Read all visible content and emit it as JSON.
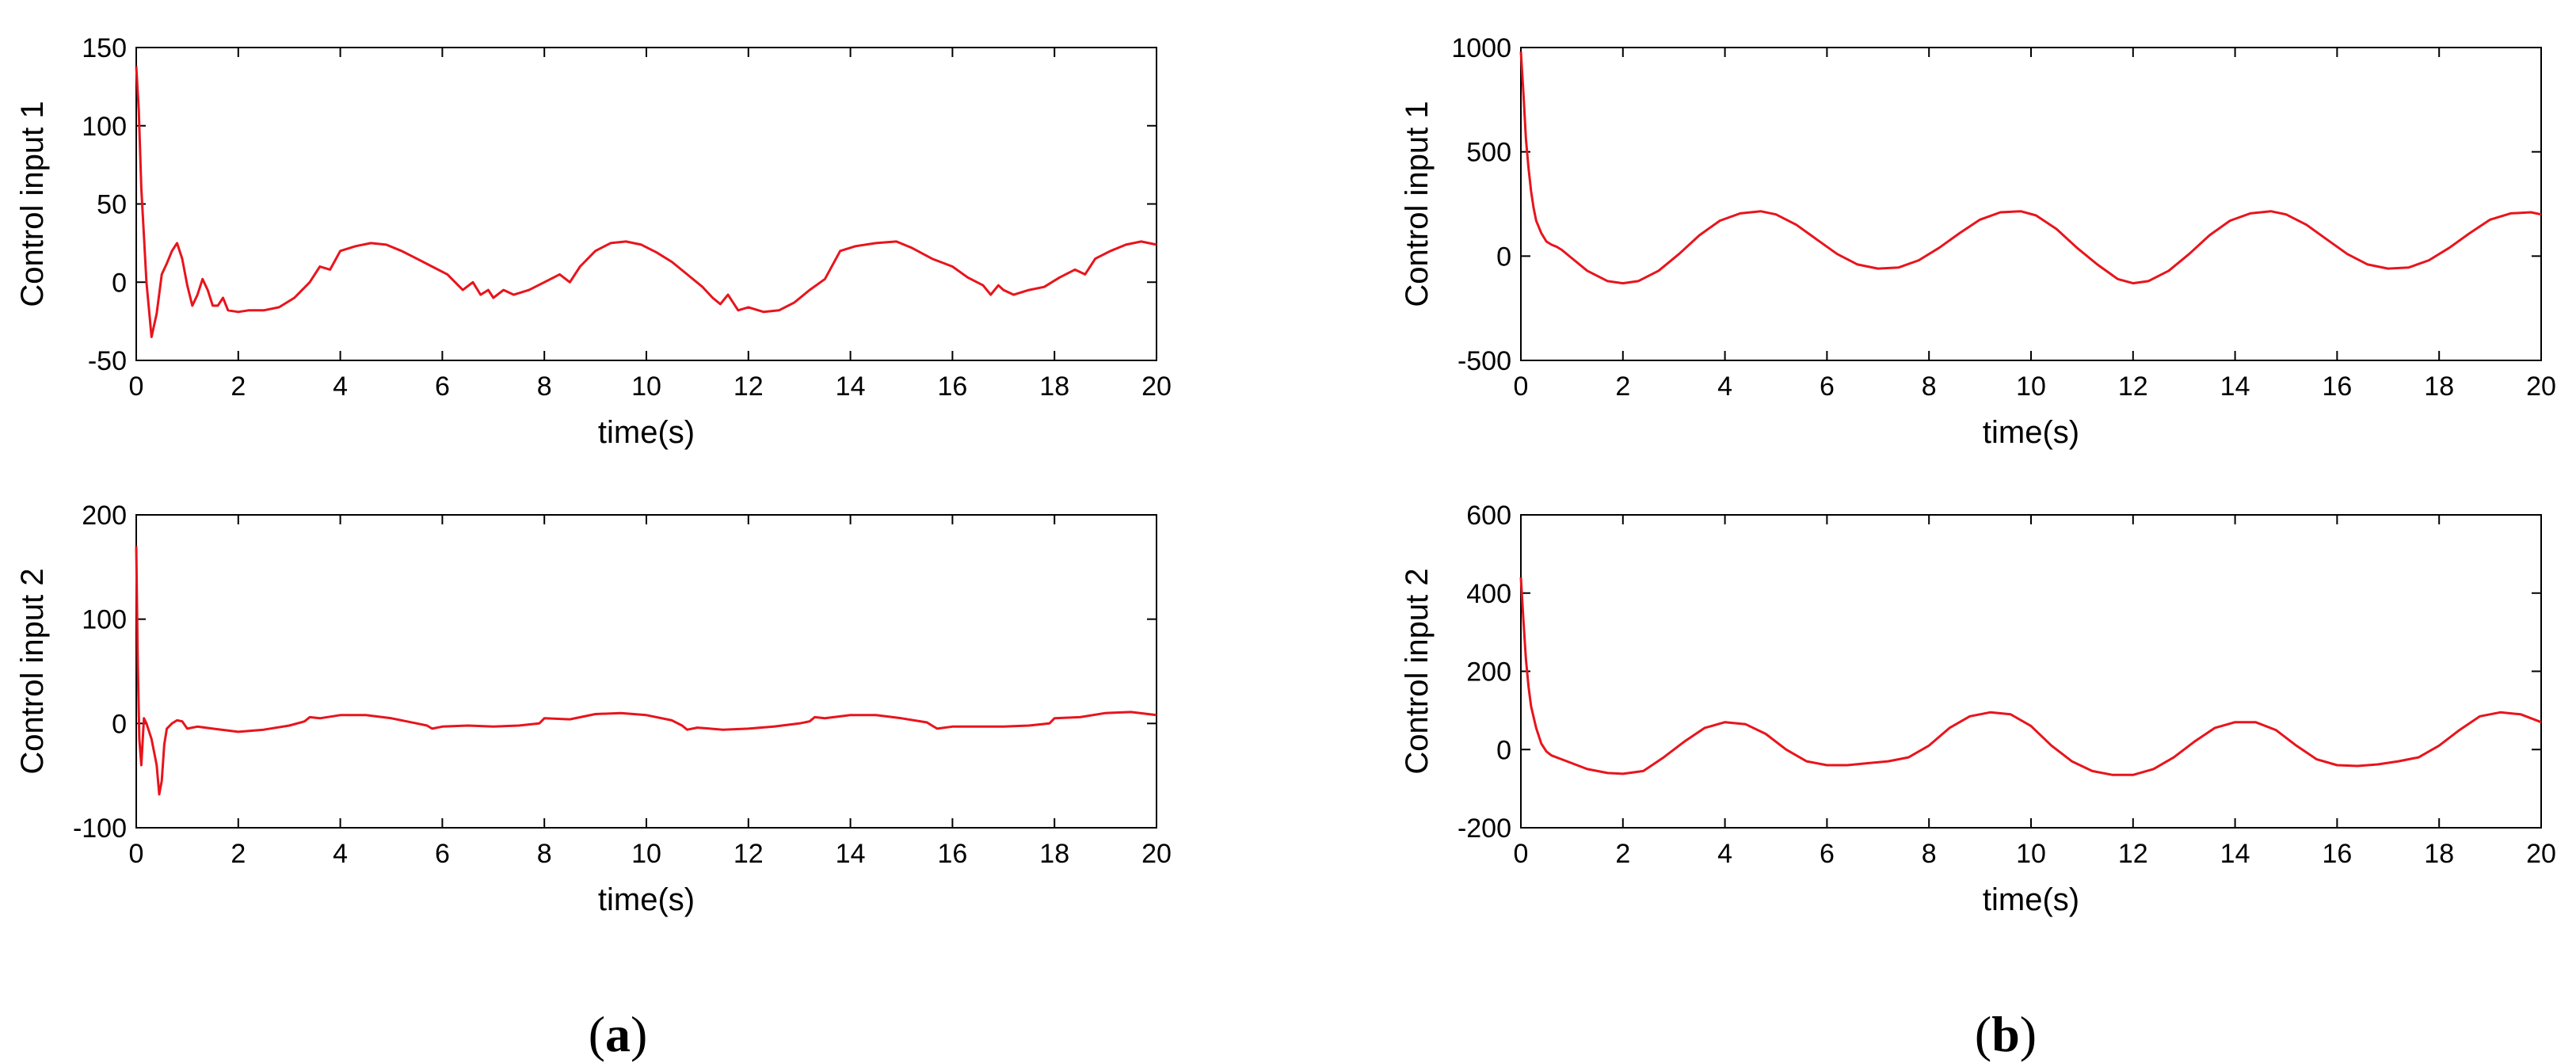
{
  "panels": {
    "a": "a",
    "b": "b"
  },
  "colors": {
    "series": "#e8141c",
    "axis": "#000000"
  },
  "chart_data": [
    {
      "type": "line",
      "panel": "a",
      "xlabel": "time(s)",
      "ylabel": "Control input 1",
      "xlim": [
        0,
        20
      ],
      "ylim": [
        -50,
        150
      ],
      "xticks": [
        0,
        2,
        4,
        6,
        8,
        10,
        12,
        14,
        16,
        18,
        20
      ],
      "yticks": [
        -50,
        0,
        50,
        100,
        150
      ],
      "grid": false,
      "series": [
        {
          "color": "#e8141c",
          "x": [
            0,
            0.05,
            0.1,
            0.2,
            0.3,
            0.4,
            0.5,
            0.6,
            0.7,
            0.8,
            0.9,
            1.0,
            1.1,
            1.2,
            1.3,
            1.4,
            1.5,
            1.6,
            1.7,
            1.8,
            2.0,
            2.2,
            2.5,
            2.8,
            3.1,
            3.4,
            3.6,
            3.8,
            4.0,
            4.3,
            4.6,
            4.9,
            5.2,
            5.5,
            5.8,
            6.1,
            6.4,
            6.6,
            6.75,
            6.9,
            7.0,
            7.2,
            7.4,
            7.7,
            8.0,
            8.3,
            8.5,
            8.7,
            9.0,
            9.3,
            9.6,
            9.9,
            10.2,
            10.5,
            10.8,
            11.1,
            11.3,
            11.45,
            11.6,
            11.8,
            12.0,
            12.3,
            12.6,
            12.9,
            13.2,
            13.5,
            13.8,
            14.1,
            14.5,
            14.9,
            15.2,
            15.6,
            16.0,
            16.3,
            16.6,
            16.75,
            16.9,
            17.0,
            17.2,
            17.5,
            17.8,
            18.1,
            18.4,
            18.6,
            18.8,
            19.1,
            19.4,
            19.7,
            20.0
          ],
          "y": [
            138,
            110,
            60,
            0,
            -35,
            -20,
            5,
            12,
            20,
            25,
            15,
            -2,
            -15,
            -8,
            2,
            -5,
            -15,
            -15,
            -10,
            -18,
            -19,
            -18,
            -18,
            -16,
            -10,
            0,
            10,
            8,
            20,
            23,
            25,
            24,
            20,
            15,
            10,
            5,
            -5,
            0,
            -8,
            -5,
            -10,
            -5,
            -8,
            -5,
            0,
            5,
            0,
            10,
            20,
            25,
            26,
            24,
            19,
            13,
            5,
            -3,
            -10,
            -14,
            -8,
            -18,
            -16,
            -19,
            -18,
            -13,
            -5,
            2,
            20,
            23,
            25,
            26,
            22,
            15,
            10,
            3,
            -2,
            -8,
            -2,
            -5,
            -8,
            -5,
            -3,
            3,
            8,
            5,
            15,
            20,
            24,
            26,
            24
          ]
        }
      ]
    },
    {
      "type": "line",
      "panel": "a",
      "xlabel": "time(s)",
      "ylabel": "Control input 2",
      "xlim": [
        0,
        20
      ],
      "ylim": [
        -100,
        200
      ],
      "xticks": [
        0,
        2,
        4,
        6,
        8,
        10,
        12,
        14,
        16,
        18,
        20
      ],
      "yticks": [
        -100,
        0,
        100,
        200
      ],
      "grid": false,
      "series": [
        {
          "color": "#e8141c",
          "x": [
            0,
            0.03,
            0.06,
            0.1,
            0.15,
            0.2,
            0.3,
            0.4,
            0.45,
            0.5,
            0.55,
            0.6,
            0.7,
            0.8,
            0.9,
            1.0,
            1.2,
            1.5,
            2.0,
            2.5,
            3.0,
            3.3,
            3.4,
            3.6,
            4.0,
            4.5,
            5.0,
            5.5,
            5.7,
            5.8,
            6.0,
            6.5,
            7.0,
            7.5,
            7.9,
            8.0,
            8.5,
            9.0,
            9.5,
            10.0,
            10.5,
            10.7,
            10.8,
            11.0,
            11.5,
            12.0,
            12.5,
            13.0,
            13.2,
            13.3,
            13.5,
            14.0,
            14.5,
            15.0,
            15.5,
            15.6,
            15.7,
            16.0,
            16.5,
            17.0,
            17.5,
            17.9,
            18.0,
            18.5,
            19.0,
            19.5,
            20.0
          ],
          "y": [
            170,
            60,
            -15,
            -40,
            5,
            0,
            -15,
            -40,
            -68,
            -55,
            -20,
            -5,
            0,
            3,
            2,
            -5,
            -3,
            -5,
            -8,
            -6,
            -2,
            2,
            6,
            5,
            8,
            8,
            5,
            0,
            -2,
            -5,
            -3,
            -2,
            -3,
            -2,
            0,
            5,
            4,
            9,
            10,
            8,
            3,
            -2,
            -6,
            -4,
            -6,
            -5,
            -3,
            0,
            2,
            6,
            5,
            8,
            8,
            5,
            1,
            -2,
            -5,
            -3,
            -3,
            -3,
            -2,
            0,
            5,
            6,
            10,
            11,
            8
          ]
        }
      ]
    },
    {
      "type": "line",
      "panel": "b",
      "xlabel": "time(s)",
      "ylabel": "Control input 1",
      "xlim": [
        0,
        20
      ],
      "ylim": [
        -500,
        1000
      ],
      "xticks": [
        0,
        2,
        4,
        6,
        8,
        10,
        12,
        14,
        16,
        18,
        20
      ],
      "yticks": [
        -500,
        0,
        500,
        1000
      ],
      "grid": false,
      "series": [
        {
          "color": "#e8141c",
          "x": [
            0,
            0.05,
            0.1,
            0.15,
            0.2,
            0.25,
            0.3,
            0.4,
            0.5,
            0.6,
            0.7,
            0.8,
            1.0,
            1.3,
            1.7,
            2.0,
            2.3,
            2.7,
            3.1,
            3.5,
            3.9,
            4.3,
            4.7,
            5.0,
            5.4,
            5.8,
            6.2,
            6.6,
            7.0,
            7.4,
            7.8,
            8.2,
            8.6,
            9.0,
            9.4,
            9.8,
            10.1,
            10.5,
            10.9,
            11.3,
            11.7,
            12.0,
            12.3,
            12.7,
            13.1,
            13.5,
            13.9,
            14.3,
            14.7,
            15.0,
            15.4,
            15.8,
            16.2,
            16.6,
            17.0,
            17.4,
            17.8,
            18.2,
            18.6,
            19.0,
            19.4,
            19.8,
            20.0
          ],
          "y": [
            980,
            780,
            560,
            420,
            310,
            230,
            170,
            110,
            70,
            55,
            45,
            30,
            -10,
            -70,
            -120,
            -130,
            -120,
            -70,
            10,
            100,
            170,
            205,
            215,
            200,
            150,
            80,
            10,
            -40,
            -60,
            -55,
            -20,
            40,
            110,
            175,
            210,
            215,
            195,
            130,
            40,
            -40,
            -110,
            -130,
            -120,
            -70,
            10,
            100,
            170,
            205,
            215,
            200,
            150,
            80,
            10,
            -40,
            -60,
            -55,
            -20,
            40,
            110,
            175,
            205,
            210,
            200
          ]
        }
      ]
    },
    {
      "type": "line",
      "panel": "b",
      "xlabel": "time(s)",
      "ylabel": "Control input 2",
      "xlim": [
        0,
        20
      ],
      "ylim": [
        -200,
        600
      ],
      "xticks": [
        0,
        2,
        4,
        6,
        8,
        10,
        12,
        14,
        16,
        18,
        20
      ],
      "yticks": [
        -200,
        0,
        200,
        400,
        600
      ],
      "grid": false,
      "series": [
        {
          "color": "#e8141c",
          "x": [
            0,
            0.05,
            0.1,
            0.15,
            0.2,
            0.3,
            0.4,
            0.5,
            0.6,
            0.8,
            1.0,
            1.3,
            1.7,
            2.0,
            2.4,
            2.8,
            3.2,
            3.6,
            4.0,
            4.4,
            4.8,
            5.2,
            5.6,
            6.0,
            6.4,
            6.8,
            7.2,
            7.6,
            8.0,
            8.4,
            8.8,
            9.2,
            9.6,
            10.0,
            10.4,
            10.8,
            11.2,
            11.6,
            12.0,
            12.4,
            12.8,
            13.2,
            13.6,
            14.0,
            14.4,
            14.8,
            15.2,
            15.6,
            16.0,
            16.4,
            16.8,
            17.2,
            17.6,
            18.0,
            18.4,
            18.8,
            19.2,
            19.6,
            20.0
          ],
          "y": [
            440,
            330,
            230,
            160,
            110,
            55,
            15,
            -5,
            -15,
            -25,
            -35,
            -50,
            -60,
            -62,
            -55,
            -20,
            20,
            55,
            70,
            65,
            40,
            0,
            -30,
            -40,
            -40,
            -35,
            -30,
            -20,
            10,
            55,
            85,
            95,
            90,
            60,
            10,
            -30,
            -55,
            -65,
            -65,
            -50,
            -20,
            20,
            55,
            70,
            70,
            50,
            10,
            -25,
            -40,
            -42,
            -38,
            -30,
            -20,
            10,
            50,
            85,
            95,
            90,
            70
          ]
        }
      ]
    }
  ]
}
